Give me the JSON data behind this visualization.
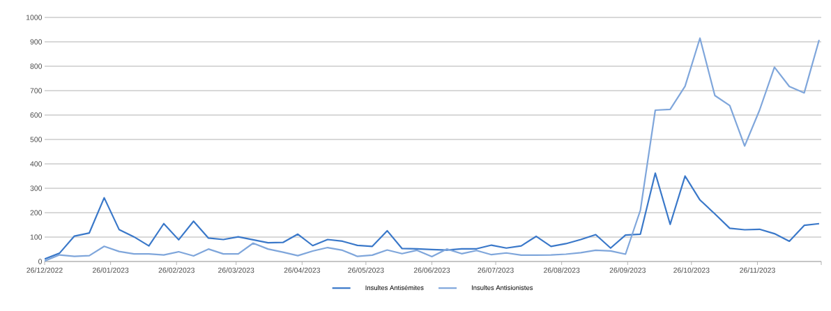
{
  "chart_data": {
    "type": "line",
    "x": [
      "2022-12-26",
      "2023-01-02",
      "2023-01-09",
      "2023-01-16",
      "2023-01-23",
      "2023-01-30",
      "2023-02-06",
      "2023-02-13",
      "2023-02-20",
      "2023-02-27",
      "2023-03-06",
      "2023-03-13",
      "2023-03-20",
      "2023-03-27",
      "2023-04-03",
      "2023-04-10",
      "2023-04-17",
      "2023-04-24",
      "2023-05-01",
      "2023-05-08",
      "2023-05-15",
      "2023-05-22",
      "2023-05-29",
      "2023-06-05",
      "2023-06-12",
      "2023-06-19",
      "2023-06-26",
      "2023-07-03",
      "2023-07-10",
      "2023-07-17",
      "2023-07-24",
      "2023-07-31",
      "2023-08-07",
      "2023-08-14",
      "2023-08-21",
      "2023-08-28",
      "2023-09-04",
      "2023-09-11",
      "2023-09-18",
      "2023-09-25",
      "2023-10-02",
      "2023-10-09",
      "2023-10-16",
      "2023-10-23",
      "2023-10-30",
      "2023-11-06",
      "2023-11-13",
      "2023-11-20",
      "2023-11-27",
      "2023-12-04",
      "2023-12-11",
      "2023-12-18",
      "2023-12-25"
    ],
    "series": [
      {
        "name": "Insultes Antisémites",
        "color": "#3a78c9",
        "values": [
          10,
          34,
          104,
          117,
          261,
          131,
          101,
          64,
          155,
          89,
          165,
          96,
          90,
          101,
          89,
          77,
          78,
          112,
          65,
          90,
          83,
          66,
          62,
          126,
          53,
          52,
          49,
          47,
          52,
          52,
          67,
          55,
          64,
          103,
          62,
          73,
          90,
          110,
          55,
          108,
          112,
          362,
          152,
          350,
          252,
          195,
          136,
          130,
          132,
          114,
          83,
          148,
          155
        ]
      },
      {
        "name": "Insultes Antisionistes",
        "color": "#7fa6db",
        "values": [
          2,
          27,
          21,
          24,
          62,
          41,
          31,
          31,
          27,
          40,
          23,
          51,
          31,
          31,
          75,
          51,
          38,
          24,
          43,
          57,
          46,
          21,
          26,
          47,
          32,
          46,
          20,
          51,
          32,
          45,
          28,
          35,
          26,
          26,
          27,
          30,
          36,
          46,
          43,
          30,
          210,
          620,
          623,
          718,
          915,
          680,
          639,
          473,
          620,
          796,
          717,
          691,
          908
        ]
      }
    ],
    "xlim": [
      "2022-12-26",
      "2023-12-26"
    ],
    "xticks": [
      {
        "value": "2022-12-26",
        "label": "26/12/2022"
      },
      {
        "value": "2023-01-26",
        "label": "26/01/2023"
      },
      {
        "value": "2023-02-26",
        "label": "26/02/2023"
      },
      {
        "value": "2023-03-26",
        "label": "26/03/2023"
      },
      {
        "value": "2023-04-26",
        "label": "26/04/2023"
      },
      {
        "value": "2023-05-26",
        "label": "26/05/2023"
      },
      {
        "value": "2023-06-26",
        "label": "26/06/2023"
      },
      {
        "value": "2023-07-26",
        "label": "26/07/2023"
      },
      {
        "value": "2023-08-26",
        "label": "26/08/2023"
      },
      {
        "value": "2023-09-26",
        "label": "26/09/2023"
      },
      {
        "value": "2023-10-26",
        "label": "26/10/2023"
      },
      {
        "value": "2023-11-26",
        "label": "26/11/2023"
      },
      {
        "value": "2023-12-26",
        "label": null
      }
    ],
    "ylim": [
      0,
      1000
    ],
    "yticks": [
      0,
      100,
      200,
      300,
      400,
      500,
      600,
      700,
      800,
      900,
      1000
    ],
    "grid": "y",
    "legend": "bottom",
    "marker": "none",
    "line_style": "solid"
  }
}
